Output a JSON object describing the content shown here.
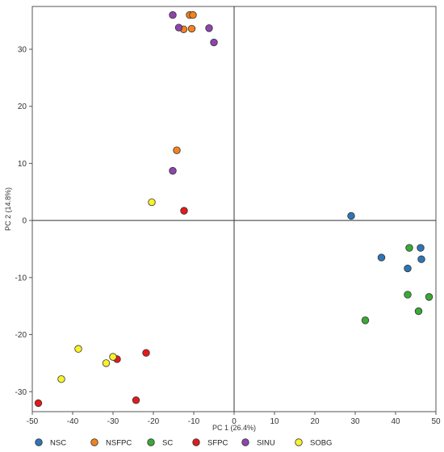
{
  "chart_data": {
    "type": "scatter",
    "title": "",
    "xlabel": "PC 1 (26.4%)",
    "ylabel": "PC 2 (14.8%)",
    "xlim": [
      -50,
      50
    ],
    "ylim": [
      -33.5,
      37.5
    ],
    "x_ticks": [
      -50,
      -40,
      -30,
      -20,
      -10,
      0,
      10,
      20,
      30,
      40,
      50
    ],
    "y_ticks": [
      -30,
      -20,
      -10,
      0,
      10,
      20,
      30
    ],
    "grid": false,
    "zero_lines": true,
    "legend_position": "bottom",
    "series": [
      {
        "name": "NSC",
        "color": "#2e75b6",
        "points": [
          [
            29.0,
            0.8
          ],
          [
            36.5,
            -6.5
          ],
          [
            43.0,
            -8.4
          ],
          [
            46.2,
            -4.8
          ],
          [
            46.4,
            -6.8
          ]
        ]
      },
      {
        "name": "NSFPC",
        "color": "#f4821f",
        "points": [
          [
            -14.2,
            12.3
          ],
          [
            -12.5,
            33.5
          ],
          [
            -11.0,
            36.0
          ],
          [
            -10.2,
            36.0
          ],
          [
            -10.5,
            33.6
          ]
        ]
      },
      {
        "name": "SC",
        "color": "#3aa935",
        "points": [
          [
            32.5,
            -17.5
          ],
          [
            43.0,
            -13.0
          ],
          [
            43.4,
            -4.8
          ],
          [
            45.7,
            -15.9
          ],
          [
            48.3,
            -13.4
          ]
        ]
      },
      {
        "name": "SFPC",
        "color": "#e31a1c",
        "points": [
          [
            -48.5,
            -32.0
          ],
          [
            -29.0,
            -24.3
          ],
          [
            -24.3,
            -31.5
          ],
          [
            -21.8,
            -23.2
          ],
          [
            -12.4,
            1.7
          ]
        ]
      },
      {
        "name": "SINU",
        "color": "#8e44ad",
        "points": [
          [
            -15.2,
            8.7
          ],
          [
            -15.2,
            36.0
          ],
          [
            -13.7,
            33.8
          ],
          [
            -6.2,
            33.7
          ],
          [
            -5.0,
            31.2
          ]
        ]
      },
      {
        "name": "SOBG",
        "color": "#f7f32a",
        "points": [
          [
            -42.8,
            -27.8
          ],
          [
            -38.6,
            -22.5
          ],
          [
            -31.7,
            -25.0
          ],
          [
            -30.0,
            -23.9
          ],
          [
            -20.4,
            3.2
          ]
        ]
      }
    ]
  }
}
